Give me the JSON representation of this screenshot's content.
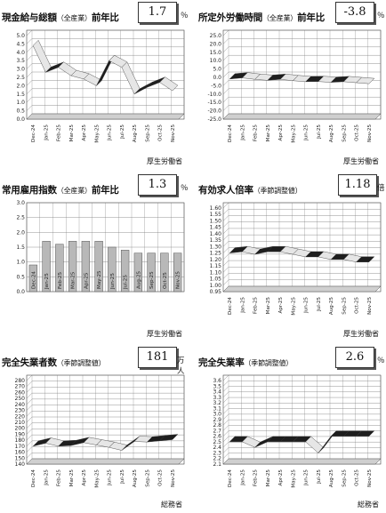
{
  "panels": [
    {
      "id": "wage",
      "title": "現金給与総額",
      "title_sub": "（全産業）",
      "title_tail": "前年比",
      "value": "1.7",
      "unit": "％",
      "source": "厚生労働省"
    },
    {
      "id": "overtime",
      "title": "所定外労働時間",
      "title_sub": "（全産業）",
      "title_tail": "前年比",
      "value": "-3.8",
      "unit": "％",
      "source": "厚生労働省"
    },
    {
      "id": "employment",
      "title": "常用雇用指数",
      "title_sub": "（全産業）",
      "title_tail": "前年比",
      "value": "1.3",
      "unit": "％",
      "source": "厚生労働省"
    },
    {
      "id": "jobratio",
      "title": "有効求人倍率",
      "title_sub": "（季節調整値）",
      "title_tail": "",
      "value": "1.18",
      "unit": "倍",
      "source": "厚生労働省"
    },
    {
      "id": "unemployed",
      "title": "完全失業者数",
      "title_sub": "（季節調整値）",
      "title_tail": "",
      "value": "181",
      "unit": "万人",
      "source": "総務省"
    },
    {
      "id": "unemprate",
      "title": "完全失業率",
      "title_sub": "（季節調整値）",
      "title_tail": "",
      "value": "2.6",
      "unit": "％",
      "source": "総務省"
    }
  ],
  "chart_data": [
    {
      "type": "line",
      "x": [
        "Dec-24",
        "Jan-25",
        "Feb-25",
        "Mar-25",
        "Apr-25",
        "May-25",
        "Jun-25",
        "Jul-25",
        "Aug-25",
        "Sep-25",
        "Oct-25",
        "Nov-25"
      ],
      "yticks": [
        "5.0",
        "4.5",
        "4.0",
        "3.5",
        "3.0",
        "2.5",
        "2.0",
        "1.5",
        "1.0",
        "0.5",
        "0.0"
      ],
      "ylim": [
        0,
        5
      ],
      "values": [
        4.4,
        2.8,
        3.1,
        2.6,
        2.4,
        2.0,
        3.5,
        3.1,
        1.5,
        1.9,
        2.2,
        1.7
      ]
    },
    {
      "type": "line",
      "x": [
        "Dec-24",
        "Jan-25",
        "Feb-25",
        "Mar-25",
        "Apr-25",
        "May-25",
        "Jun-25",
        "Jul-25",
        "Aug-25",
        "Sep-25",
        "Oct-25",
        "Nov-25"
      ],
      "yticks": [
        "25.0",
        "20.0",
        "15.0",
        "10.0",
        "5.0",
        "0.0",
        "-5.0",
        "-10.0",
        "-15.0",
        "-20.0",
        "-25.0"
      ],
      "ylim": [
        -25,
        25
      ],
      "values": [
        -1.0,
        -0.3,
        -1.2,
        -1.8,
        -1.2,
        -2.0,
        -2.6,
        -2.5,
        -3.0,
        -2.6,
        -3.2,
        -3.8
      ]
    },
    {
      "type": "bar",
      "x": [
        "Dec-24",
        "Jan-25",
        "Feb-25",
        "Mar-25",
        "Apr-25",
        "May-25",
        "Jun-25",
        "Jul-25",
        "Aug-25",
        "Sep-25",
        "Oct-25",
        "Nov-25"
      ],
      "yticks": [
        "3.0",
        "2.5",
        "2.0",
        "1.5",
        "1.0",
        "0.5",
        "0.0"
      ],
      "ylim": [
        0,
        3
      ],
      "values": [
        0.9,
        1.7,
        1.6,
        1.7,
        1.7,
        1.7,
        1.5,
        1.4,
        1.3,
        1.3,
        1.3,
        1.3
      ]
    },
    {
      "type": "line",
      "x": [
        "Dec-24",
        "Jan-25",
        "Feb-25",
        "Mar-25",
        "Apr-25",
        "May-25",
        "Jun-25",
        "Jul-25",
        "Aug-25",
        "Sep-25",
        "Oct-25",
        "Nov-25"
      ],
      "yticks": [
        "1.60",
        "1.55",
        "1.50",
        "1.45",
        "1.40",
        "1.35",
        "1.30",
        "1.25",
        "1.20",
        "1.15",
        "1.10",
        "1.05",
        "1.00",
        "0.95"
      ],
      "ylim": [
        0.95,
        1.6
      ],
      "values": [
        1.25,
        1.26,
        1.24,
        1.26,
        1.26,
        1.24,
        1.22,
        1.22,
        1.2,
        1.2,
        1.18,
        1.18
      ]
    },
    {
      "type": "line",
      "x": [
        "Dec-24",
        "Jan-25",
        "Feb-25",
        "Mar-25",
        "Apr-25",
        "May-25",
        "Jun-25",
        "Jul-25",
        "Aug-25",
        "Sep-25",
        "Oct-25",
        "Nov-25"
      ],
      "yticks": [
        "280",
        "270",
        "260",
        "250",
        "240",
        "230",
        "220",
        "210",
        "200",
        "190",
        "180",
        "170",
        "160",
        "150",
        "140"
      ],
      "ylim": [
        140,
        280
      ],
      "values": [
        170,
        175,
        170,
        171,
        176,
        172,
        168,
        163,
        178,
        177,
        179,
        181
      ]
    },
    {
      "type": "line",
      "x": [
        "Dec-24",
        "Jan-25",
        "Feb-25",
        "Mar-25",
        "Apr-25",
        "May-25",
        "Jun-25",
        "Jul-25",
        "Aug-25",
        "Sep-25",
        "Oct-25",
        "Nov-25"
      ],
      "yticks": [
        "3.6",
        "3.5",
        "3.4",
        "3.3",
        "3.2",
        "3.1",
        "3.0",
        "2.9",
        "2.8",
        "2.7",
        "2.6",
        "2.5",
        "2.4",
        "2.3",
        "2.2",
        "2.1"
      ],
      "ylim": [
        2.1,
        3.6
      ],
      "values": [
        2.5,
        2.5,
        2.4,
        2.5,
        2.5,
        2.5,
        2.5,
        2.3,
        2.6,
        2.6,
        2.6,
        2.6
      ]
    }
  ],
  "colors": {
    "surface_top": "#e6e6e6",
    "surface_front": "#9a9a9a",
    "surface_back_dark": "#1e1e1e",
    "floor": "#cfcfcf",
    "bar_fill": "#b8b8b8",
    "grid": "#777777"
  }
}
